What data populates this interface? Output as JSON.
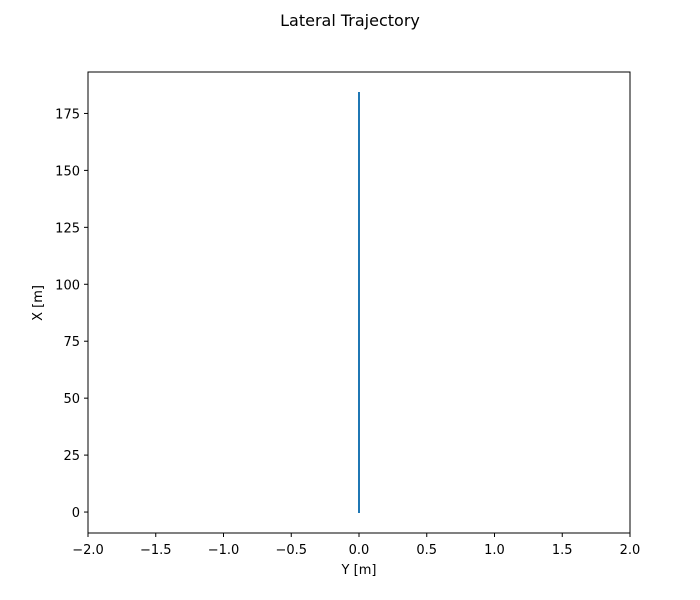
{
  "chart_data": {
    "type": "line",
    "title": "Lateral Trajectory",
    "xlabel": "Y [m]",
    "ylabel": "X [m]",
    "xlim": [
      -2.0,
      2.0
    ],
    "ylim": [
      -9.2,
      193.2
    ],
    "grid": false,
    "x_ticks": [
      -2.0,
      -1.5,
      -1.0,
      -0.5,
      0.0,
      0.5,
      1.0,
      1.5,
      2.0
    ],
    "x_tick_labels": [
      "−2.0",
      "−1.5",
      "−1.0",
      "−0.5",
      "0.0",
      "0.5",
      "1.0",
      "1.5",
      "2.0"
    ],
    "y_ticks": [
      0,
      25,
      50,
      75,
      100,
      125,
      150,
      175
    ],
    "y_tick_labels": [
      "0",
      "25",
      "50",
      "75",
      "100",
      "125",
      "150",
      "175"
    ],
    "series": [
      {
        "color": "#1f77b4",
        "points": [
          [
            0.0,
            0.0
          ],
          [
            0.0,
            184.0
          ]
        ]
      }
    ]
  }
}
